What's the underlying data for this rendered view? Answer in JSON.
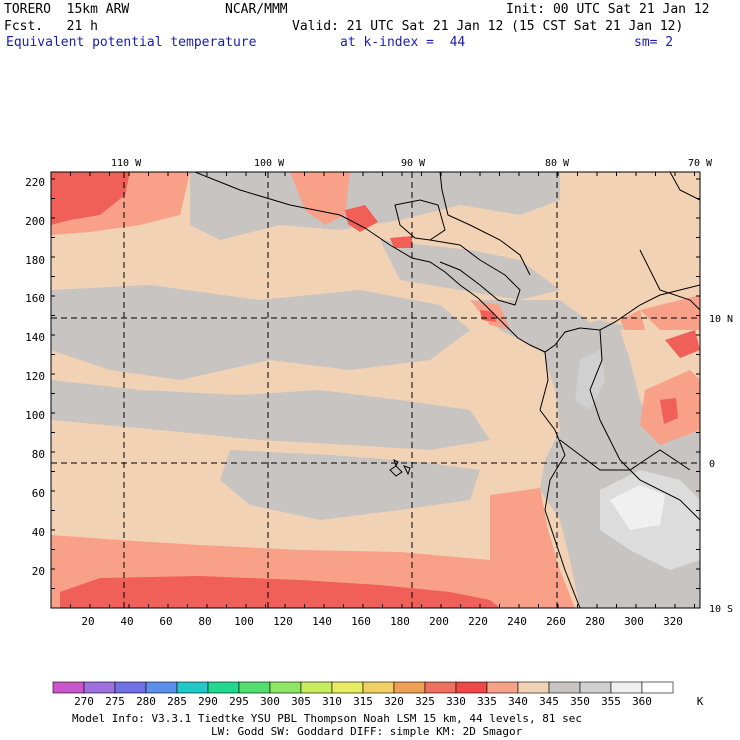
{
  "header": {
    "model": "TORERO  15km ARW",
    "org": "NCAR/MMM",
    "init": "Init: 00 UTC Sat 21 Jan 12",
    "fcst": "Fcst.   21 h",
    "valid": "Valid: 21 UTC Sat 21 Jan 12 (15 CST Sat 21 Jan 12)",
    "field": "Equivalent potential temperature",
    "level": "at k-index =  44",
    "smooth": "sm= 2"
  },
  "map": {
    "lon_labels": [
      "110 W",
      "100 W",
      "90 W",
      "80 W",
      "70 W"
    ],
    "lat_labels": [
      "10 N",
      "0",
      "10 S"
    ],
    "x_ticks": [
      "20",
      "40",
      "60",
      "80",
      "100",
      "120",
      "140",
      "160",
      "180",
      "200",
      "220",
      "240",
      "260",
      "280",
      "300",
      "320"
    ],
    "y_ticks": [
      "220",
      "200",
      "180",
      "160",
      "140",
      "120",
      "100",
      "80",
      "60",
      "40",
      "20"
    ]
  },
  "colorbar": {
    "values": [
      "270",
      "275",
      "280",
      "285",
      "290",
      "295",
      "300",
      "305",
      "310",
      "315",
      "320",
      "325",
      "330",
      "335",
      "340",
      "345",
      "350",
      "355",
      "360"
    ],
    "unit": "K",
    "colors": [
      "#cc55cc",
      "#a070e0",
      "#7070e8",
      "#5a8ff0",
      "#20c8c8",
      "#20d890",
      "#50e070",
      "#90e860",
      "#c8ee60",
      "#e8ec60",
      "#f0d060",
      "#f0a050",
      "#f07060",
      "#f04848",
      "#f8a088",
      "#f2d2b4",
      "#c8c4c2",
      "#d0d0d0",
      "#f0f0f0",
      "#ffffff"
    ]
  },
  "footer": {
    "line1": "Model Info: V3.3.1   Tiedtke YSU PBL  Thompson    Noah LSM  15 km,   44 levels,   81 sec",
    "line2": "LW: Godd SW: Goddard DIFF: simple KM: 2D Smagor"
  }
}
